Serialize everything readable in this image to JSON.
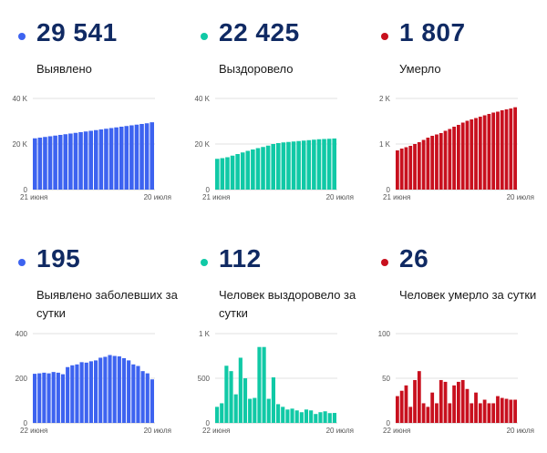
{
  "panels": [
    {
      "value": "29 541",
      "label": "Выявлено",
      "color": "#3d63f0",
      "chart_data": {
        "type": "bar",
        "yticks": [
          "0",
          "20 K",
          "40 K"
        ],
        "ylim": [
          0,
          40000
        ],
        "xlabels": [
          "21 июня",
          "20 июля"
        ],
        "values": [
          22500,
          22800,
          23100,
          23400,
          23700,
          24000,
          24300,
          24600,
          24900,
          25200,
          25500,
          25800,
          26100,
          26400,
          26700,
          27000,
          27300,
          27600,
          27900,
          28200,
          28500,
          28800,
          29100,
          29541
        ]
      }
    },
    {
      "value": "22 425",
      "label": "Выздоровело",
      "color": "#10c9a6",
      "chart_data": {
        "type": "bar",
        "yticks": [
          "0",
          "20 K",
          "40 K"
        ],
        "ylim": [
          0,
          40000
        ],
        "xlabels": [
          "21 июня",
          "20 июля"
        ],
        "values": [
          13500,
          13800,
          14200,
          14900,
          15600,
          16300,
          17000,
          17600,
          18200,
          18700,
          19300,
          20000,
          20400,
          20700,
          20900,
          21100,
          21300,
          21500,
          21700,
          21900,
          22100,
          22200,
          22300,
          22425
        ]
      }
    },
    {
      "value": "1 807",
      "label": "Умерло",
      "color": "#c8101e",
      "chart_data": {
        "type": "bar",
        "yticks": [
          "0",
          "1 K",
          "2 K"
        ],
        "ylim": [
          0,
          2000
        ],
        "xlabels": [
          "21 июня",
          "20 июля"
        ],
        "values": [
          860,
          900,
          930,
          960,
          1000,
          1040,
          1090,
          1140,
          1180,
          1210,
          1240,
          1290,
          1330,
          1380,
          1420,
          1470,
          1510,
          1540,
          1570,
          1600,
          1630,
          1660,
          1690,
          1710,
          1740,
          1760,
          1780,
          1807
        ]
      }
    },
    {
      "value": "195",
      "label": "Выявлено заболевших за сутки",
      "color": "#3d63f0",
      "chart_data": {
        "type": "bar",
        "yticks": [
          "0",
          "200",
          "400"
        ],
        "ylim": [
          0,
          400
        ],
        "xlabels": [
          "22 июня",
          "20 июля"
        ],
        "values": [
          220,
          222,
          225,
          222,
          228,
          225,
          218,
          250,
          258,
          262,
          272,
          270,
          276,
          280,
          292,
          296,
          304,
          300,
          298,
          290,
          280,
          262,
          255,
          232,
          222,
          195
        ]
      }
    },
    {
      "value": "112",
      "label": "Человек выздоровело за сутки",
      "color": "#10c9a6",
      "chart_data": {
        "type": "bar",
        "yticks": [
          "0",
          "500",
          "1 K"
        ],
        "ylim": [
          0,
          1000
        ],
        "xlabels": [
          "22 июня",
          "20 июля"
        ],
        "values": [
          180,
          220,
          640,
          580,
          320,
          730,
          500,
          270,
          280,
          850,
          850,
          270,
          510,
          210,
          180,
          150,
          160,
          140,
          120,
          150,
          140,
          100,
          120,
          130,
          110,
          112
        ]
      }
    },
    {
      "value": "26",
      "label": "Человек умерло за сутки",
      "color": "#c8101e",
      "chart_data": {
        "type": "bar",
        "yticks": [
          "0",
          "50",
          "100"
        ],
        "ylim": [
          0,
          100
        ],
        "xlabels": [
          "22 июня",
          "20 июля"
        ],
        "values": [
          30,
          36,
          42,
          18,
          48,
          58,
          22,
          18,
          34,
          22,
          48,
          46,
          22,
          42,
          46,
          48,
          38,
          22,
          34,
          22,
          26,
          22,
          22,
          30,
          28,
          27,
          26,
          26
        ]
      }
    }
  ]
}
